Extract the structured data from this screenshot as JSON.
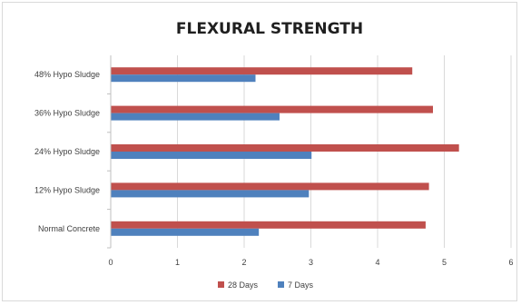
{
  "chart_data": {
    "type": "bar",
    "orientation": "horizontal",
    "title": "FLEXURAL STRENGTH",
    "xlabel": "",
    "ylabel": "",
    "categories": [
      "Normal Concrete",
      "12% Hypo Sludge",
      "24% Hypo Sludge",
      "36% Hypo Sludge",
      "48% Hypo Sludge"
    ],
    "series": [
      {
        "name": "28 Days",
        "color": "#c0504d",
        "values": [
          4.72,
          4.77,
          5.22,
          4.83,
          4.52
        ]
      },
      {
        "name": "7 Days",
        "color": "#4f81bd",
        "values": [
          2.22,
          2.97,
          3.01,
          2.53,
          2.17
        ]
      }
    ],
    "xlim": [
      0,
      6
    ],
    "xticks": [
      0,
      1,
      2,
      3,
      4,
      5,
      6
    ],
    "grid": "vertical",
    "gridColor": "#d9d9d9",
    "legend": "bottom"
  }
}
